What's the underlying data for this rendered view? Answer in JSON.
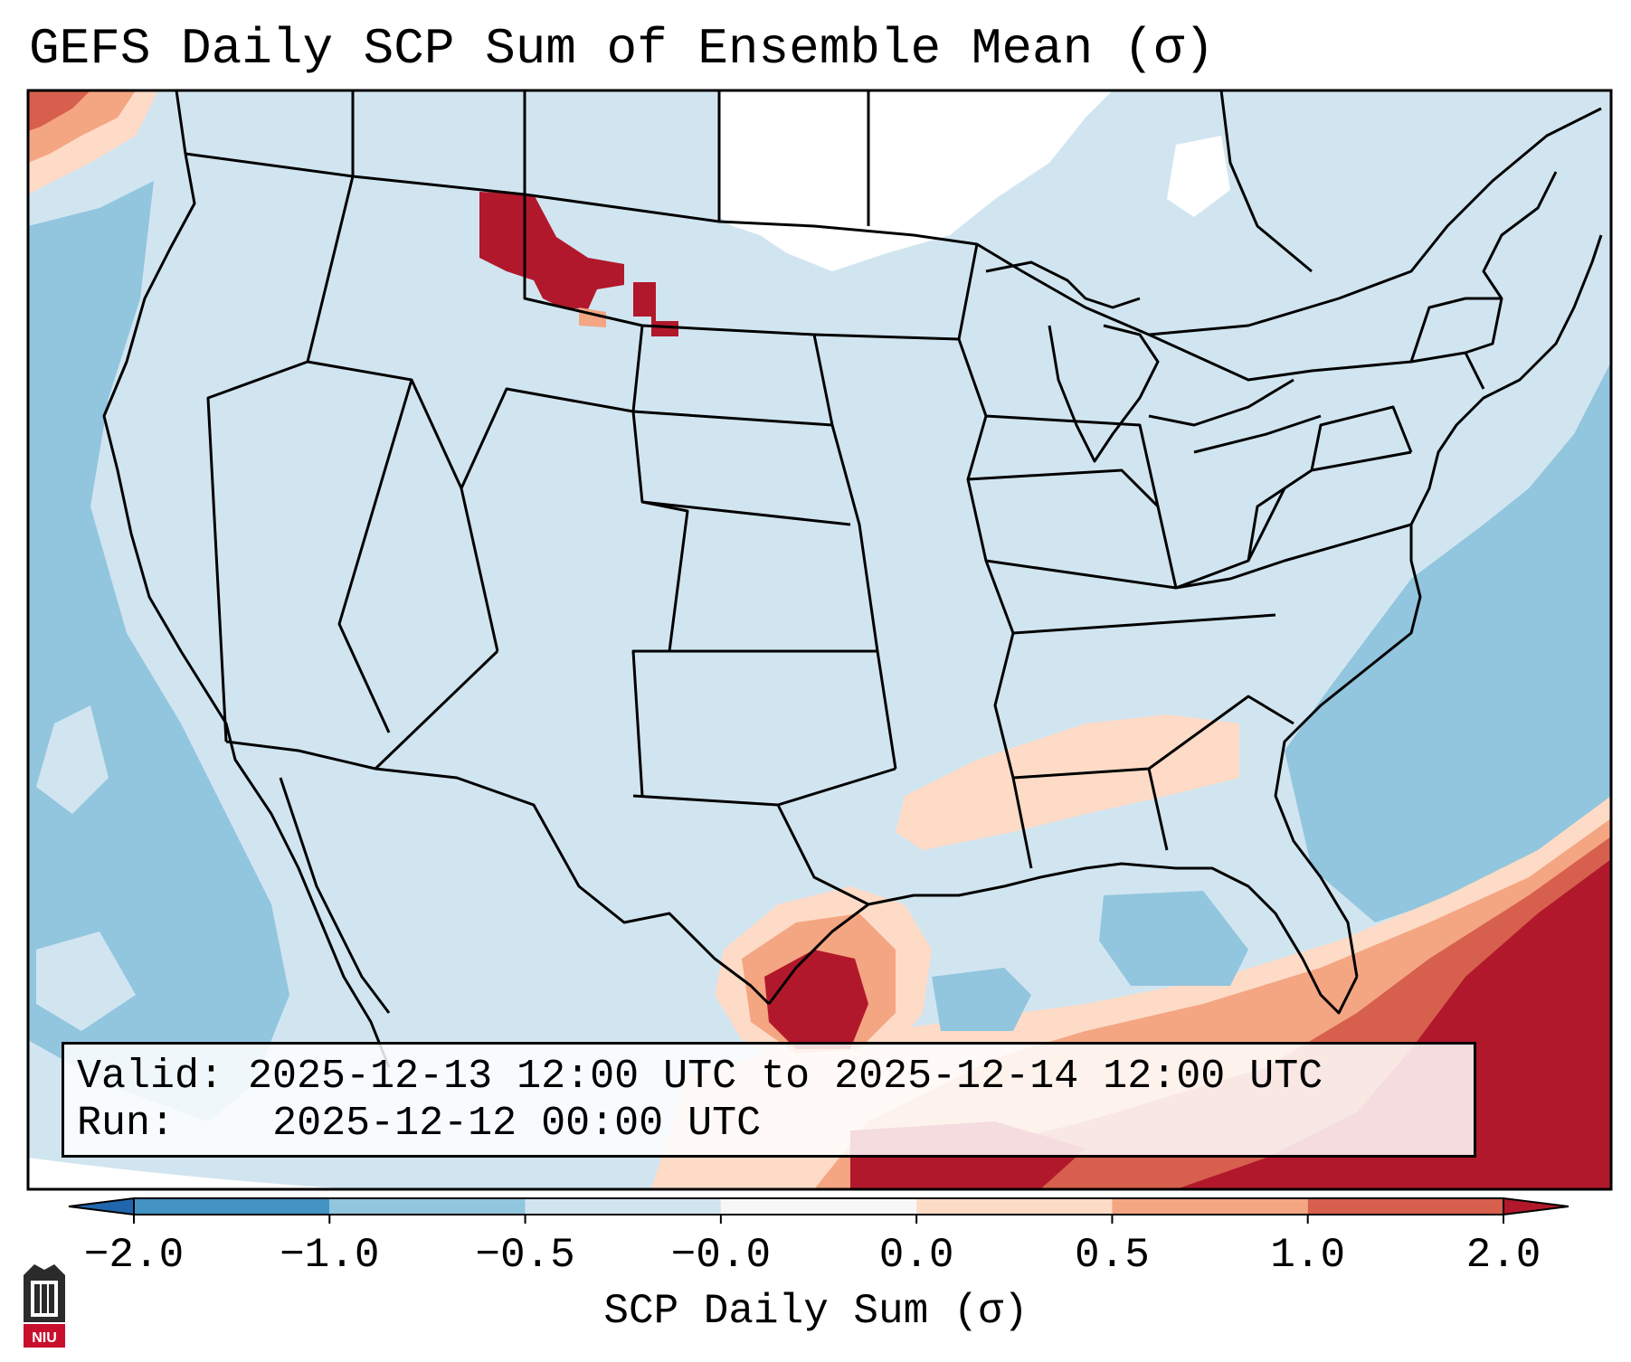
{
  "title": "GEFS Daily SCP Sum of Ensemble Mean (σ)",
  "info": {
    "valid_label": "Valid:",
    "valid_value": "2025-12-13 12:00 UTC to 2025-12-14 12:00 UTC",
    "run_label": "Run:",
    "run_value": "2025-12-12 00:00 UTC"
  },
  "colorbar": {
    "label": "SCP Daily Sum (σ)",
    "ticks": [
      "−2.0",
      "−1.0",
      "−0.5",
      "−0.0",
      "0.0",
      "0.5",
      "1.0",
      "2.0"
    ],
    "colors": [
      "#4393c3",
      "#92c5de",
      "#d1e5f0",
      "#f7f7f7",
      "#fddbc7",
      "#f4a582",
      "#d6604d",
      "#b2182b"
    ],
    "extend_low_color": "#2166ac",
    "extend_high_color": "#b2182b"
  },
  "map": {
    "background_color": "#d1e5f0",
    "region": "Continental United States, Gulf of Mexico, northern Mexico, southern Canada"
  },
  "logo": {
    "text": "NIU",
    "icon": "niu-logo-icon"
  }
}
